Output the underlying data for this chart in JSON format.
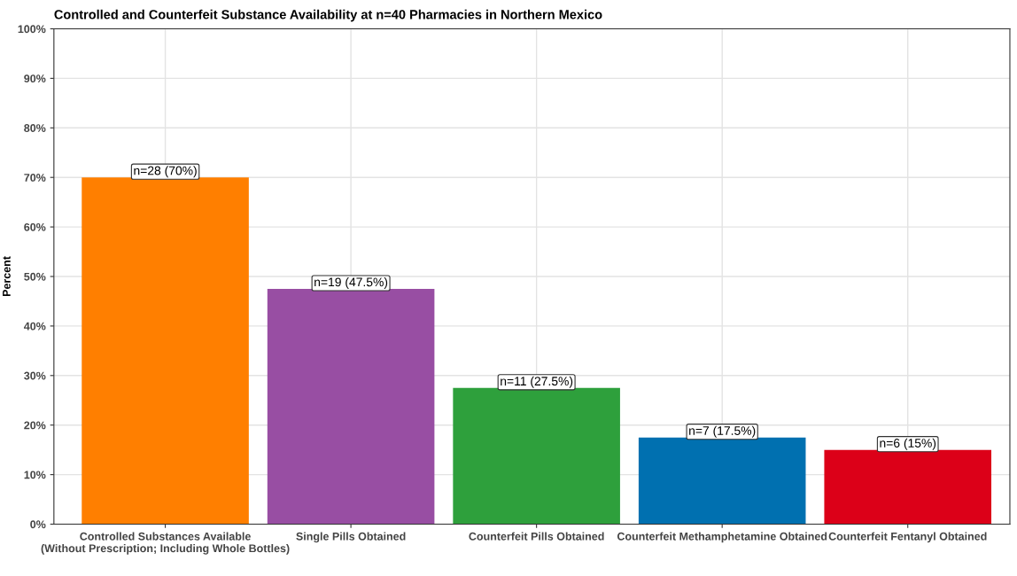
{
  "chart_data": {
    "type": "bar",
    "title": "Controlled and Counterfeit Substance Availability at n=40 Pharmacies in Northern Mexico",
    "ylabel": "Percent",
    "categories": [
      "Controlled Substances Available\n(Without Prescription; Including Whole Bottles)",
      "Single Pills Obtained",
      "Counterfeit Pills Obtained",
      "Counterfeit Methamphetamine Obtained",
      "Counterfeit Fentanyl Obtained"
    ],
    "values": [
      70,
      47.5,
      27.5,
      17.5,
      15
    ],
    "colors": [
      "#ff7f00",
      "#984ea3",
      "#2ea03c",
      "#0070b0",
      "#dc0018"
    ],
    "value_labels": [
      "n=28 (70%)",
      "n=19 (47.5%)",
      "n=11 (27.5%)",
      "n=7 (17.5%)",
      "n=6 (15%)"
    ],
    "ylim": [
      0,
      100
    ],
    "yticks": [
      {
        "value": 0,
        "label": "0%"
      },
      {
        "value": 10,
        "label": "10%"
      },
      {
        "value": 20,
        "label": "20%"
      },
      {
        "value": 30,
        "label": "30%"
      },
      {
        "value": 40,
        "label": "40%"
      },
      {
        "value": 50,
        "label": "50%"
      },
      {
        "value": 60,
        "label": "60%"
      },
      {
        "value": 70,
        "label": "70%"
      },
      {
        "value": 80,
        "label": "80%"
      },
      {
        "value": 90,
        "label": "90%"
      },
      {
        "value": 100,
        "label": "100%"
      }
    ],
    "grid": true,
    "legend": false
  }
}
